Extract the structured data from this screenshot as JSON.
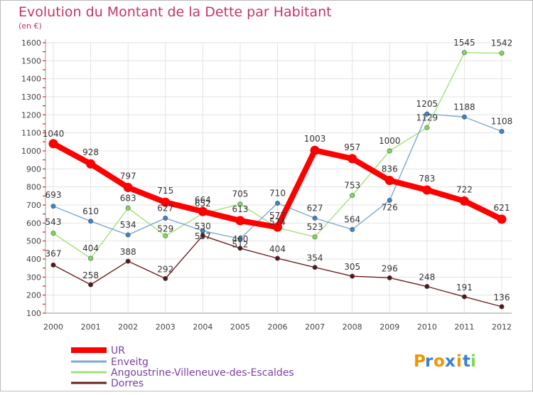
{
  "chart_data": {
    "type": "line",
    "title": "Evolution du Montant de la Dette par Habitant",
    "subtitle": "(en €)",
    "x": [
      "2000",
      "2001",
      "2002",
      "2003",
      "2004",
      "2005",
      "2006",
      "2007",
      "2008",
      "2009",
      "2010",
      "2011",
      "2012"
    ],
    "yticks": [
      100,
      200,
      300,
      400,
      500,
      600,
      700,
      800,
      900,
      1000,
      1100,
      1200,
      1300,
      1400,
      1500,
      1600
    ],
    "ylim": [
      100,
      1600
    ],
    "grid": true,
    "legend_position": "bottom-left",
    "series": [
      {
        "name": "UR",
        "color": "#ff0000",
        "marker": "#ff0000",
        "values": [
          1040,
          928,
          797,
          715,
          664,
          613,
          577,
          1003,
          957,
          836,
          783,
          722,
          621
        ],
        "labels": [
          "1040",
          "928",
          "797",
          "715",
          "664",
          "613",
          "577",
          "1003",
          "957",
          "836",
          "783",
          "722",
          "621"
        ]
      },
      {
        "name": "Enveitg",
        "color": "#7fa8cf",
        "marker": "#3a84c8",
        "values": [
          693,
          610,
          534,
          627,
          557,
          512,
          710,
          627,
          564,
          726,
          1205,
          1188,
          1108
        ],
        "labels": [
          "693",
          "610",
          "534",
          "627",
          "557",
          "512",
          "710",
          "627",
          "564",
          "726",
          "1205",
          "1188",
          "1108"
        ]
      },
      {
        "name": "Angoustrine-Villeneuve-des-Escaldes",
        "color": "#a4e07a",
        "marker": "#7ed957",
        "values": [
          543,
          404,
          683,
          529,
          652,
          705,
          574,
          523,
          753,
          1000,
          1129,
          1545,
          1542
        ],
        "labels": [
          "543",
          "404",
          "683",
          "529",
          "652",
          "705",
          "574",
          "523",
          "753",
          "1000",
          "1129",
          "1545",
          "1542"
        ]
      },
      {
        "name": "Dorres",
        "color": "#6b2020",
        "marker": "#5a1518",
        "values": [
          367,
          258,
          388,
          292,
          530,
          460,
          404,
          354,
          305,
          296,
          248,
          191,
          136
        ],
        "labels": [
          "367",
          "258",
          "388",
          "292",
          "530",
          "460",
          "404",
          "354",
          "305",
          "296",
          "248",
          "191",
          "136"
        ]
      }
    ],
    "logo": "Proxiti"
  }
}
